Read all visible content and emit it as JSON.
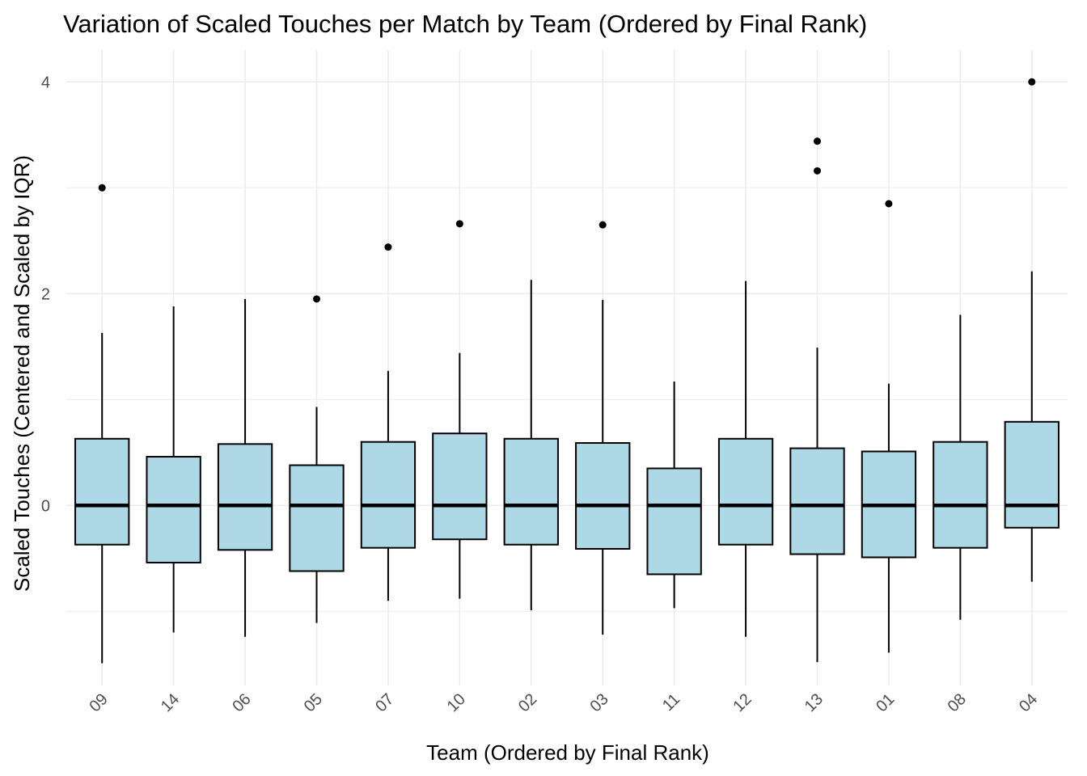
{
  "chart_data": {
    "type": "boxplot",
    "title": "Variation of Scaled Touches per Match by Team (Ordered by Final Rank)",
    "xlabel": "Team (Ordered by Final Rank)",
    "ylabel": "Scaled Touches (Centered and Scaled by IQR)",
    "ylim": [
      -1.7,
      4.3
    ],
    "yticks": [
      0,
      2,
      4
    ],
    "grid": true,
    "colors": {
      "box_fill": "#add8e6",
      "box_stroke": "#000000",
      "grid": "#ebebeb"
    },
    "categories": [
      "09",
      "14",
      "06",
      "05",
      "07",
      "10",
      "02",
      "03",
      "11",
      "12",
      "13",
      "01",
      "08",
      "04"
    ],
    "boxes": [
      {
        "team": "09",
        "whisker_low": -1.49,
        "q1": -0.37,
        "median": 0,
        "q3": 0.63,
        "whisker_high": 1.63,
        "outliers": [
          3.0
        ]
      },
      {
        "team": "14",
        "whisker_low": -1.2,
        "q1": -0.54,
        "median": 0,
        "q3": 0.46,
        "whisker_high": 1.88,
        "outliers": []
      },
      {
        "team": "06",
        "whisker_low": -1.24,
        "q1": -0.42,
        "median": 0,
        "q3": 0.58,
        "whisker_high": 1.95,
        "outliers": []
      },
      {
        "team": "05",
        "whisker_low": -1.11,
        "q1": -0.62,
        "median": 0,
        "q3": 0.38,
        "whisker_high": 0.93,
        "outliers": [
          1.95
        ]
      },
      {
        "team": "07",
        "whisker_low": -0.9,
        "q1": -0.4,
        "median": 0,
        "q3": 0.6,
        "whisker_high": 1.27,
        "outliers": [
          2.44
        ]
      },
      {
        "team": "10",
        "whisker_low": -0.88,
        "q1": -0.32,
        "median": 0,
        "q3": 0.68,
        "whisker_high": 1.44,
        "outliers": [
          2.66
        ]
      },
      {
        "team": "02",
        "whisker_low": -0.99,
        "q1": -0.37,
        "median": 0,
        "q3": 0.63,
        "whisker_high": 2.13,
        "outliers": []
      },
      {
        "team": "03",
        "whisker_low": -1.22,
        "q1": -0.41,
        "median": 0,
        "q3": 0.59,
        "whisker_high": 1.94,
        "outliers": [
          2.65
        ]
      },
      {
        "team": "11",
        "whisker_low": -0.97,
        "q1": -0.65,
        "median": 0,
        "q3": 0.35,
        "whisker_high": 1.17,
        "outliers": []
      },
      {
        "team": "12",
        "whisker_low": -1.24,
        "q1": -0.37,
        "median": 0,
        "q3": 0.63,
        "whisker_high": 2.12,
        "outliers": []
      },
      {
        "team": "13",
        "whisker_low": -1.48,
        "q1": -0.46,
        "median": 0,
        "q3": 0.54,
        "whisker_high": 1.49,
        "outliers": [
          3.16,
          3.44
        ]
      },
      {
        "team": "01",
        "whisker_low": -1.39,
        "q1": -0.49,
        "median": 0,
        "q3": 0.51,
        "whisker_high": 1.15,
        "outliers": [
          2.85
        ]
      },
      {
        "team": "08",
        "whisker_low": -1.08,
        "q1": -0.4,
        "median": 0,
        "q3": 0.6,
        "whisker_high": 1.8,
        "outliers": []
      },
      {
        "team": "04",
        "whisker_low": -0.72,
        "q1": -0.21,
        "median": 0,
        "q3": 0.79,
        "whisker_high": 2.21,
        "outliers": [
          4.0
        ]
      }
    ]
  }
}
